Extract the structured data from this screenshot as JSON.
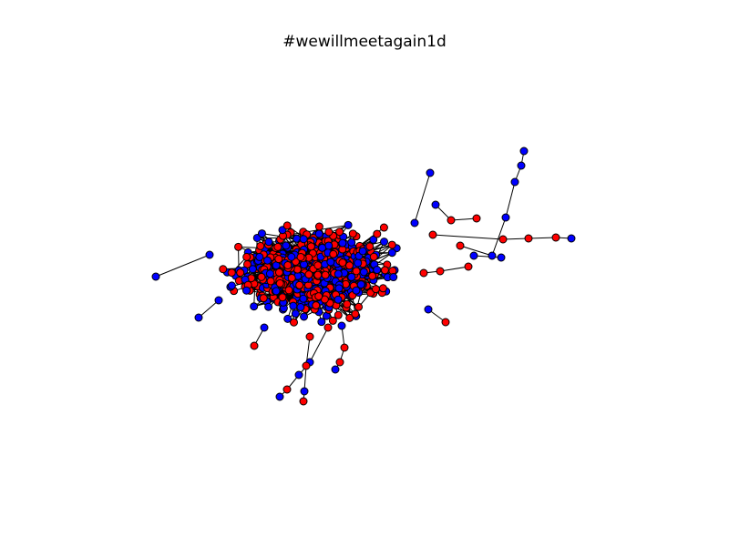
{
  "figure": {
    "title": "#wewillmeetagain1d"
  },
  "colors": {
    "group_a": "#ff0000",
    "group_b": "#0000ff",
    "edge": "#000000",
    "background": "#ffffff"
  }
}
